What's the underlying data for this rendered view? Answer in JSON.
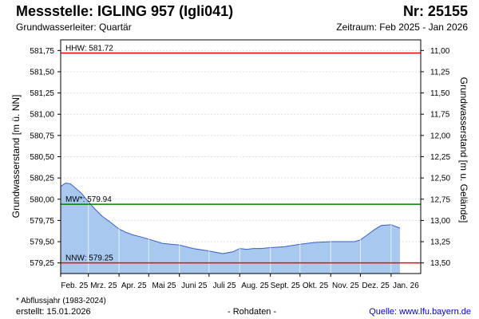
{
  "header": {
    "title": "Messstelle: IGLING 957 (Igli041)",
    "station_no": "Nr: 25155",
    "aquifer": "Grundwasserleiter: Quartär",
    "period": "Zeitraum: Feb 2025 - Jan 2026"
  },
  "footer": {
    "footnote": "* Abflussjahr (1983-2024)",
    "created": "erstellt:  15.01.2026",
    "rawdata": "- Rohdaten -",
    "source": "Quelle:  www.lfu.bayern.de"
  },
  "colors": {
    "area_fill": "#a8c8f0",
    "series_line": "#3a5fcd",
    "hhw_line": "#ff0000",
    "mw_line": "#008000",
    "nnw_line": "#ff0000",
    "grid": "#ffffff",
    "plot_bg": "#ffffff"
  },
  "chart_data": {
    "type": "area",
    "title": "",
    "ylabel": "Grundwasserstand [m ü. NN]",
    "y2label": "Grundwasserstand [m u. Gelände]",
    "ylim": [
      579.125,
      581.875
    ],
    "y2lim": [
      13.625,
      10.875
    ],
    "yticks": [
      "581,75",
      "581,50",
      "581,25",
      "581,00",
      "580,75",
      "580,50",
      "580,25",
      "580,00",
      "579,75",
      "579,50",
      "579,25"
    ],
    "yticks_values": [
      581.75,
      581.5,
      581.25,
      581.0,
      580.75,
      580.5,
      580.25,
      580.0,
      579.75,
      579.5,
      579.25
    ],
    "y2ticks": [
      "11,00",
      "11,25",
      "11,50",
      "11,75",
      "12,00",
      "12,25",
      "12,50",
      "12,75",
      "13,00",
      "13,25",
      "13,50"
    ],
    "y2ticks_values": [
      11.0,
      11.25,
      11.5,
      11.75,
      12.0,
      12.25,
      12.5,
      12.75,
      13.0,
      13.25,
      13.5
    ],
    "xticks": [
      "Feb. 25",
      "Mrz. 25",
      "Apr. 25",
      "Mai 25",
      "Juni 25",
      "Juli 25",
      "Aug. 25",
      "Sept. 25",
      "Okt. 25",
      "Nov. 25",
      "Dez. 25",
      "Jan. 26"
    ],
    "xlim": [
      "2025-02-01",
      "2026-01-31"
    ],
    "grid": true,
    "reference_lines": [
      {
        "label": "HHW: 581.72",
        "value": 581.72,
        "color": "#ff0000"
      },
      {
        "label": "MW*: 579.94",
        "value": 579.94,
        "color": "#008000"
      },
      {
        "label": "NNW: 579.25",
        "value": 579.25,
        "color": "#ff0000"
      }
    ],
    "series": [
      {
        "x": [
          "2025-02-01",
          "2025-02-06",
          "2025-02-11",
          "2025-02-16",
          "2025-02-22",
          "2025-03-01",
          "2025-03-08",
          "2025-03-15",
          "2025-03-22",
          "2025-04-01",
          "2025-04-08",
          "2025-04-15",
          "2025-04-22",
          "2025-05-01",
          "2025-05-15",
          "2025-06-01",
          "2025-06-15",
          "2025-07-01",
          "2025-07-15",
          "2025-07-25",
          "2025-08-01",
          "2025-08-08",
          "2025-08-15",
          "2025-08-22",
          "2025-09-01",
          "2025-09-15",
          "2025-10-01",
          "2025-10-15",
          "2025-11-01",
          "2025-11-15",
          "2025-11-25",
          "2025-12-01",
          "2025-12-08",
          "2025-12-15",
          "2025-12-22",
          "2026-01-01",
          "2026-01-10"
        ],
        "values": [
          580.15,
          580.19,
          580.18,
          580.13,
          580.07,
          579.97,
          579.88,
          579.8,
          579.74,
          579.65,
          579.61,
          579.58,
          579.56,
          579.53,
          579.48,
          579.46,
          579.42,
          579.39,
          579.36,
          579.38,
          579.42,
          579.41,
          579.42,
          579.42,
          579.43,
          579.44,
          579.47,
          579.49,
          579.5,
          579.5,
          579.5,
          579.52,
          579.58,
          579.64,
          579.69,
          579.7,
          579.66
        ]
      }
    ]
  }
}
